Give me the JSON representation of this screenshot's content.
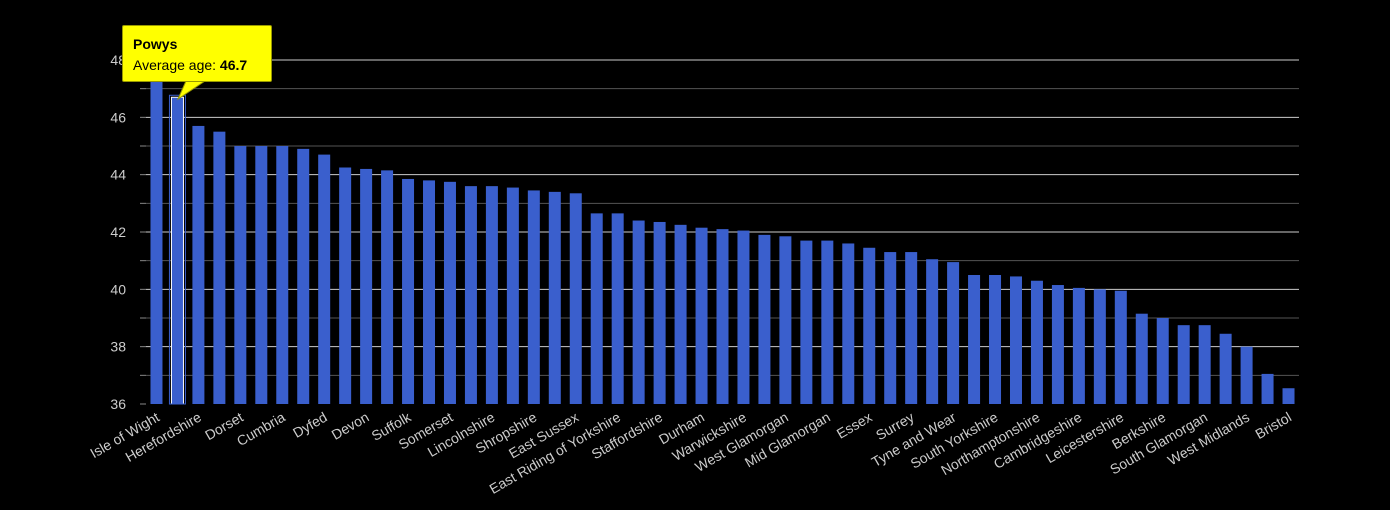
{
  "chart_data": {
    "type": "bar",
    "title": "",
    "xlabel": "",
    "ylabel": "",
    "ylim": [
      36,
      48.5
    ],
    "yticks": [
      36,
      38,
      40,
      42,
      44,
      46,
      48
    ],
    "grid": true,
    "bar_color": "#3a5fcd",
    "highlight_color": "#ffff00",
    "background": "#000000",
    "categories": [
      "Isle of Wight",
      "Powys",
      "Herefordshire",
      "",
      "Dorset",
      "",
      "Cumbria",
      "",
      "Dyfed",
      "",
      "Devon",
      "",
      "Suffolk",
      "",
      "Somerset",
      "",
      "Lincolnshire",
      "",
      "Shropshire",
      "",
      "East Sussex",
      "",
      "East Riding of Yorkshire",
      "",
      "Staffordshire",
      "",
      "Durham",
      "",
      "Warwickshire",
      "",
      "West Glamorgan",
      "",
      "Mid Glamorgan",
      "",
      "Essex",
      "",
      "Surrey",
      "",
      "Tyne and Wear",
      "",
      "South Yorkshire",
      "",
      "Northamptonshire",
      "",
      "Cambridgeshire",
      "",
      "Leicestershire",
      "",
      "Berkshire",
      "",
      "South Glamorgan",
      "",
      "West Midlands",
      "",
      "Bristol"
    ],
    "tick_labels": [
      "Isle of Wight",
      "Herefordshire",
      "Dorset",
      "Cumbria",
      "Dyfed",
      "Devon",
      "Suffolk",
      "Somerset",
      "Lincolnshire",
      "Shropshire",
      "East Sussex",
      "East Riding of Yorkshire",
      "Staffordshire",
      "Durham",
      "Warwickshire",
      "West Glamorgan",
      "Mid Glamorgan",
      "Essex",
      "Surrey",
      "Tyne and Wear",
      "South Yorkshire",
      "Northamptonshire",
      "Cambridgeshire",
      "Leicestershire",
      "Berkshire",
      "South Glamorgan",
      "West Midlands",
      "Bristol"
    ],
    "values": [
      48.0,
      46.7,
      45.7,
      45.5,
      45.0,
      45.0,
      45.0,
      44.9,
      44.7,
      44.25,
      44.2,
      44.15,
      43.85,
      43.8,
      43.75,
      43.6,
      43.6,
      43.55,
      43.45,
      43.4,
      43.35,
      42.65,
      42.65,
      42.4,
      42.35,
      42.25,
      42.15,
      42.1,
      42.05,
      41.9,
      41.85,
      41.7,
      41.7,
      41.6,
      41.45,
      41.3,
      41.3,
      41.05,
      40.95,
      40.5,
      40.5,
      40.45,
      40.3,
      40.15,
      40.05,
      40.0,
      39.95,
      39.15,
      39.0,
      38.75,
      38.75,
      38.45,
      38.0,
      37.05,
      36.55
    ],
    "highlight_index": 1
  },
  "tooltip": {
    "title": "Powys",
    "label": "Average age: ",
    "value": "46.7"
  }
}
